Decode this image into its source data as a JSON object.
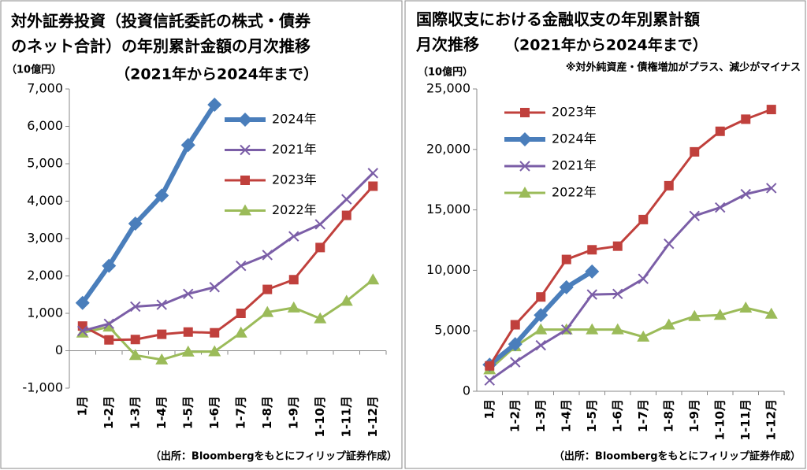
{
  "chart_data": [
    {
      "type": "line",
      "title": [
        "対外証券投資（投資信託委託の株式・債券",
        "のネット合計）の年別累計金額の月次推移"
      ],
      "subtitle": "（2021年から2024年まで）",
      "y_unit": "（10億円）",
      "source": "（出所：Bloombergをもとにフィリップ証券作成）",
      "categories": [
        "1月",
        "1-2月",
        "1-3月",
        "1-4月",
        "1-5月",
        "1-6月",
        "1-7月",
        "1-8月",
        "1-9月",
        "1-10月",
        "1-11月",
        "1-12月"
      ],
      "series": [
        {
          "name": "2024年",
          "color": "#4a7ebb",
          "marker": "diamond",
          "line_width": 6,
          "values": [
            1280,
            2270,
            3400,
            4150,
            5500,
            6580,
            null,
            null,
            null,
            null,
            null,
            null
          ]
        },
        {
          "name": "2021年",
          "color": "#7b5ea7",
          "marker": "x",
          "line_width": 3,
          "values": [
            530,
            720,
            1180,
            1230,
            1520,
            1700,
            2270,
            2560,
            3060,
            3380,
            4050,
            4750
          ]
        },
        {
          "name": "2023年",
          "color": "#c0403c",
          "marker": "square",
          "line_width": 3,
          "values": [
            660,
            290,
            300,
            440,
            500,
            480,
            1000,
            1640,
            1900,
            2760,
            3620,
            4400
          ]
        },
        {
          "name": "2022年",
          "color": "#9bbb59",
          "marker": "triangle",
          "line_width": 3,
          "values": [
            480,
            640,
            -120,
            -240,
            -30,
            -20,
            480,
            1030,
            1150,
            860,
            1330,
            1900
          ]
        }
      ],
      "ylim": [
        -1000,
        7000
      ],
      "yticks": [
        {
          "value": -1000,
          "label": "-1,000"
        },
        0,
        {
          "value": 1000,
          "label": "1,000"
        },
        {
          "value": 2000,
          "label": "2,000"
        },
        {
          "value": 3000,
          "label": "3,000"
        },
        {
          "value": 4000,
          "label": "4,000"
        },
        {
          "value": 5000,
          "label": "5,000"
        },
        {
          "value": 6000,
          "label": "6,000"
        },
        {
          "value": 7000,
          "label": "7,000"
        }
      ],
      "negative_tick_color": "#e00000",
      "grid": false,
      "legend": "upper right"
    },
    {
      "type": "line",
      "title": [
        "国際収支における金融収支の年別累計額",
        "月次推移"
      ],
      "subtitle": "（2021年から2024年まで）",
      "note": "※対外純資産・債権増加がプラス、減少がマイナス",
      "y_unit": "（10億円）",
      "source": "（出所：Bloombergをもとにフィリップ証券作成）",
      "categories": [
        "1月",
        "1-2月",
        "1-3月",
        "1-4月",
        "1-5月",
        "1-6月",
        "1-7月",
        "1-8月",
        "1-9月",
        "1-10月",
        "1-11月",
        "1-12月"
      ],
      "series": [
        {
          "name": "2023年",
          "color": "#c0403c",
          "marker": "square",
          "line_width": 3,
          "values": [
            2100,
            5500,
            7800,
            10900,
            11700,
            12000,
            14200,
            17000,
            19800,
            21500,
            22500,
            23300
          ]
        },
        {
          "name": "2024年",
          "color": "#4a7ebb",
          "marker": "diamond",
          "line_width": 6,
          "values": [
            2200,
            3900,
            6300,
            8600,
            9900,
            null,
            null,
            null,
            null,
            null,
            null,
            null
          ]
        },
        {
          "name": "2021年",
          "color": "#7b5ea7",
          "marker": "x",
          "line_width": 3,
          "values": [
            900,
            2400,
            3800,
            5100,
            8000,
            8050,
            9300,
            12200,
            14500,
            15200,
            16300,
            16800
          ]
        },
        {
          "name": "2022年",
          "color": "#9bbb59",
          "marker": "triangle",
          "line_width": 3,
          "values": [
            1800,
            3700,
            5100,
            5100,
            5100,
            5100,
            4500,
            5500,
            6200,
            6300,
            6900,
            6400
          ]
        }
      ],
      "ylim": [
        0,
        25000
      ],
      "yticks": [
        0,
        {
          "value": 5000,
          "label": "5,000"
        },
        {
          "value": 10000,
          "label": "10,000"
        },
        {
          "value": 15000,
          "label": "15,000"
        },
        {
          "value": 20000,
          "label": "20,000"
        },
        {
          "value": 25000,
          "label": "25,000"
        }
      ],
      "grid": false,
      "legend": "upper left"
    }
  ]
}
